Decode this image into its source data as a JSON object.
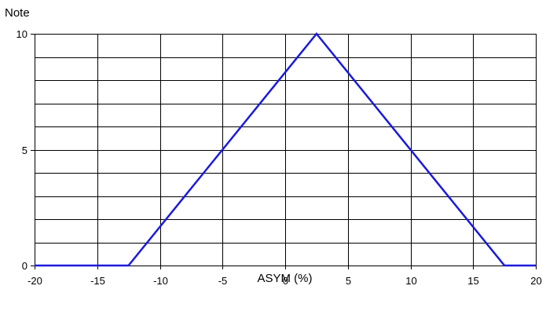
{
  "chart_data": {
    "type": "line",
    "title": "",
    "ylabel": "Note",
    "xlabel": "ASYM (%)",
    "xlim": [
      -20,
      20
    ],
    "ylim": [
      0,
      10
    ],
    "x_ticks": [
      -20,
      -15,
      -10,
      -5,
      0,
      5,
      10,
      15,
      20
    ],
    "y_ticks": [
      0,
      5,
      10
    ],
    "grid": true,
    "series": [
      {
        "color": "#1a1adc",
        "x": [
          -20,
          -12.5,
          2.5,
          17.5,
          20
        ],
        "y": [
          0,
          0,
          10,
          0,
          0
        ]
      }
    ]
  }
}
